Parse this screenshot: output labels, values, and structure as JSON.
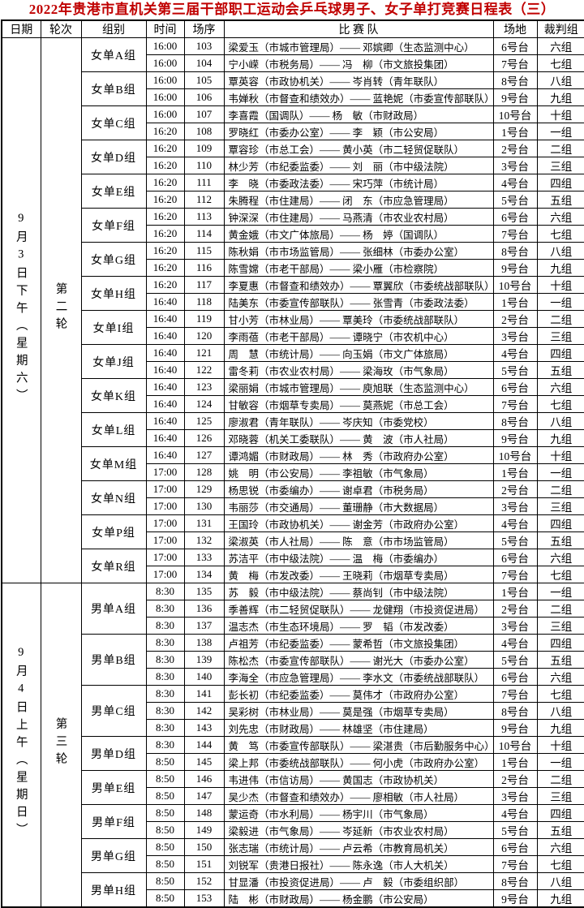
{
  "title": "2022年贵港市直机关第三届干部职工运动会乒乓球男子、女子单打竞赛日程表（三）",
  "columns": [
    "日期",
    "轮次",
    "组别",
    "时间",
    "场序",
    "比 赛 队",
    "场地",
    "裁判组"
  ],
  "sections": [
    {
      "date": "9月3日下午（星期六）",
      "round": "第二轮",
      "groups": [
        {
          "name": "女单A组",
          "matches": [
            [
              "16:00",
              "103",
              "梁爱玉（市城市管理局）—— 邓嫔卿（生态监测中心）",
              "6号台",
              "六组"
            ],
            [
              "16:00",
              "104",
              "宁小嵘（市税务局）—— 冯　柳（市文旅投集团）",
              "7号台",
              "七组"
            ]
          ]
        },
        {
          "name": "女单B组",
          "matches": [
            [
              "16:00",
              "105",
              "覃英容（市政协机关）—— 岑肖转（青年联队）",
              "8号台",
              "八组"
            ],
            [
              "16:00",
              "106",
              "韦婵秋（市督查和绩效办）—— 蓝艳妮（市委宣传部联队）",
              "9号台",
              "九组"
            ]
          ]
        },
        {
          "name": "女单C组",
          "matches": [
            [
              "16:00",
              "107",
              "李喜霞（国调队）—— 杨　敏（市财政局）",
              "10号台",
              "十组"
            ],
            [
              "16:20",
              "108",
              "罗晓红（市委办公室）—— 李　颖（市公安局）",
              "1号台",
              "一组"
            ]
          ]
        },
        {
          "name": "女单D组",
          "matches": [
            [
              "16:20",
              "109",
              "覃容珍（市总工会）—— 黄小英（市二轻贸促联队）",
              "2号台",
              "二组"
            ],
            [
              "16:20",
              "110",
              "林少芳（市纪委监委）—— 刘　丽（市中级法院）",
              "3号台",
              "三组"
            ]
          ]
        },
        {
          "name": "女单E组",
          "matches": [
            [
              "16:20",
              "111",
              "李　晓（市委政法委）—— 宋巧萍（市统计局）",
              "4号台",
              "四组"
            ],
            [
              "16:20",
              "112",
              "朱腾程（市住建局）—— 闭　东（市应急管理局）",
              "5号台",
              "五组"
            ]
          ]
        },
        {
          "name": "女单F组",
          "matches": [
            [
              "16:20",
              "113",
              "钟深深（市住建局）—— 马燕清（市农业农村局）",
              "6号台",
              "六组"
            ],
            [
              "16:20",
              "114",
              "黄金娥（市文广体旅局）—— 杨　婷（国调队）",
              "7号台",
              "七组"
            ]
          ]
        },
        {
          "name": "女单G组",
          "matches": [
            [
              "16:20",
              "115",
              "陈秋娟（市市场监管局）—— 张细林（市委办公室）",
              "8号台",
              "八组"
            ],
            [
              "16:20",
              "116",
              "陈雪嫦（市老干部局）—— 梁小雁（市检察院）",
              "9号台",
              "九组"
            ]
          ]
        },
        {
          "name": "女单H组",
          "matches": [
            [
              "16:20",
              "117",
              "李夏惠（市督查和绩效办）—— 覃翼欣（市委统战部联队）",
              "10号台",
              "十组"
            ],
            [
              "16:40",
              "118",
              "陆美东（市委宣传部联队）—— 张雪青（市委政法委）",
              "1号台",
              "一组"
            ]
          ]
        },
        {
          "name": "女单I组",
          "matches": [
            [
              "16:40",
              "119",
              "甘小芳（市林业局）—— 覃美玲（市委统战部联队）",
              "2号台",
              "二组"
            ],
            [
              "16:40",
              "120",
              "李雨蓓（市老干部局）—— 谭晓宁（市农机中心）",
              "3号台",
              "三组"
            ]
          ]
        },
        {
          "name": "女单J组",
          "matches": [
            [
              "16:40",
              "121",
              "周　慧（市统计局）—— 向玉娟（市文广体旅局）",
              "4号台",
              "四组"
            ],
            [
              "16:40",
              "122",
              "雷冬莉（市农业农村局）—— 梁海玫（市气象局）",
              "5号台",
              "五组"
            ]
          ]
        },
        {
          "name": "女单K组",
          "matches": [
            [
              "16:40",
              "123",
              "梁丽娟（市城市管理局）—— 庾旭联（生态监测中心）",
              "6号台",
              "六组"
            ],
            [
              "16:40",
              "124",
              "甘敏容（市烟草专卖局）—— 莫燕妮（市总工会）",
              "7号台",
              "七组"
            ]
          ]
        },
        {
          "name": "女单L组",
          "matches": [
            [
              "16:40",
              "125",
              "廖淑君（青年联队）—— 岑庆知（市委党校）",
              "8号台",
              "八组"
            ],
            [
              "16:40",
              "126",
              "邓晓蓉（机关工委联队）—— 黄　波（市人社局）",
              "9号台",
              "九组"
            ]
          ]
        },
        {
          "name": "女单M组",
          "matches": [
            [
              "16:40",
              "127",
              "谭鸿媚（市财政局）—— 林　秀（市政府办公室）",
              "10号台",
              "十组"
            ],
            [
              "17:00",
              "128",
              "姚　明（市公安局）—— 李祖敏（市气象局）",
              "1号台",
              "一组"
            ]
          ]
        },
        {
          "name": "女单N组",
          "matches": [
            [
              "17:00",
              "129",
              "杨思锐（市委编办）—— 谢卓君（市税务局）",
              "2号台",
              "二组"
            ],
            [
              "17:00",
              "130",
              "韦丽莎（市交通局）—— 董珊静（市大数据局）",
              "3号台",
              "三组"
            ]
          ]
        },
        {
          "name": "女单P组",
          "matches": [
            [
              "17:00",
              "131",
              "王国玲（市政协机关）—— 谢金芳（市政府办公室）",
              "4号台",
              "四组"
            ],
            [
              "17:00",
              "132",
              "梁淑英（市人社局）—— 陈　意（市市场监管局）",
              "5号台",
              "五组"
            ]
          ]
        },
        {
          "name": "女单R组",
          "matches": [
            [
              "17:00",
              "133",
              "苏洁平（市中级法院）—— 温　梅（市委编办）",
              "6号台",
              "六组"
            ],
            [
              "17:00",
              "134",
              "黄　梅（市发改委）—— 王晓莉（市烟草专卖局）",
              "7号台",
              "七组"
            ]
          ]
        }
      ]
    },
    {
      "date": "9月4日上午（星期日）",
      "round": "第三轮",
      "groups": [
        {
          "name": "男单A组",
          "matches": [
            [
              "8:30",
              "135",
              "苏　毅（市中级法院）—— 蔡尚钊（市中级法院）",
              "1号台",
              "一组"
            ],
            [
              "8:30",
              "136",
              "季善辉（市二轻贸促联队）—— 龙健翔（市投资促进局）",
              "2号台",
              "二组"
            ],
            [
              "8:30",
              "137",
              "温志杰（市生态环境局）—— 罗　韬（市发改委）",
              "3号台",
              "三组"
            ]
          ]
        },
        {
          "name": "男单B组",
          "matches": [
            [
              "8:30",
              "138",
              "卢祖芳（市纪委监委）—— 蒙希哲（市文旅投集团）",
              "4号台",
              "四组"
            ],
            [
              "8:30",
              "139",
              "陈松杰（市委宣传部联队）—— 谢光大（市委办公室）",
              "5号台",
              "五组"
            ],
            [
              "8:30",
              "140",
              "李海全（市应急管理局）—— 李水文（市委统战部联队）",
              "6号台",
              "六组"
            ]
          ]
        },
        {
          "name": "男单C组",
          "matches": [
            [
              "8:30",
              "141",
              "彭长初（市纪委监委）—— 莫伟才（市政府办公室）",
              "7号台",
              "七组"
            ],
            [
              "8:30",
              "142",
              "吴彩树（市林业局）—— 莫是强（市烟草专卖局）",
              "8号台",
              "八组"
            ],
            [
              "8:30",
              "143",
              "刘先忠（市财政局）—— 林雄坚（市住建局）",
              "9号台",
              "九组"
            ]
          ]
        },
        {
          "name": "男单D组",
          "matches": [
            [
              "8:30",
              "144",
              "黄　笃（市委宣传部联队）—— 梁湛贵（市后勤服务中心）",
              "10号台",
              "十组"
            ],
            [
              "8:50",
              "145",
              "梁上邦（市委统战部联队）—— 何小虎（市政府办公室）",
              "1号台",
              "一组"
            ]
          ]
        },
        {
          "name": "男单E组",
          "matches": [
            [
              "8:50",
              "146",
              "韦进伟（市信访局）—— 黄国志（市政协机关）",
              "2号台",
              "二组"
            ],
            [
              "8:50",
              "147",
              "吴少杰（市督查和绩效办）—— 廖相敏（市人社局）",
              "3号台",
              "三组"
            ]
          ]
        },
        {
          "name": "男单F组",
          "matches": [
            [
              "8:50",
              "148",
              "蒙运奇（市水利局）—— 杨宇川（市气象局）",
              "4号台",
              "四组"
            ],
            [
              "8:50",
              "149",
              "梁毅进（市气象局）—— 岑延新（市农业农村局）",
              "5号台",
              "五组"
            ]
          ]
        },
        {
          "name": "男单G组",
          "matches": [
            [
              "8:50",
              "150",
              "张志瑞（市统计局）—— 卢云希（市教育局机关）",
              "6号台",
              "六组"
            ],
            [
              "8:50",
              "151",
              "刘锐军（贵港日报社）—— 陈永逸（市人大机关）",
              "7号台",
              "七组"
            ]
          ]
        },
        {
          "name": "男单H组",
          "matches": [
            [
              "8:50",
              "152",
              "甘显潘（市投资促进局）—— 卢　毅（市委组织部）",
              "8号台",
              "八组"
            ],
            [
              "8:50",
              "153",
              "陆　彬（市财政局）—— 杨金鹏（市公安局）",
              "9号台",
              "九组"
            ]
          ]
        }
      ]
    }
  ]
}
